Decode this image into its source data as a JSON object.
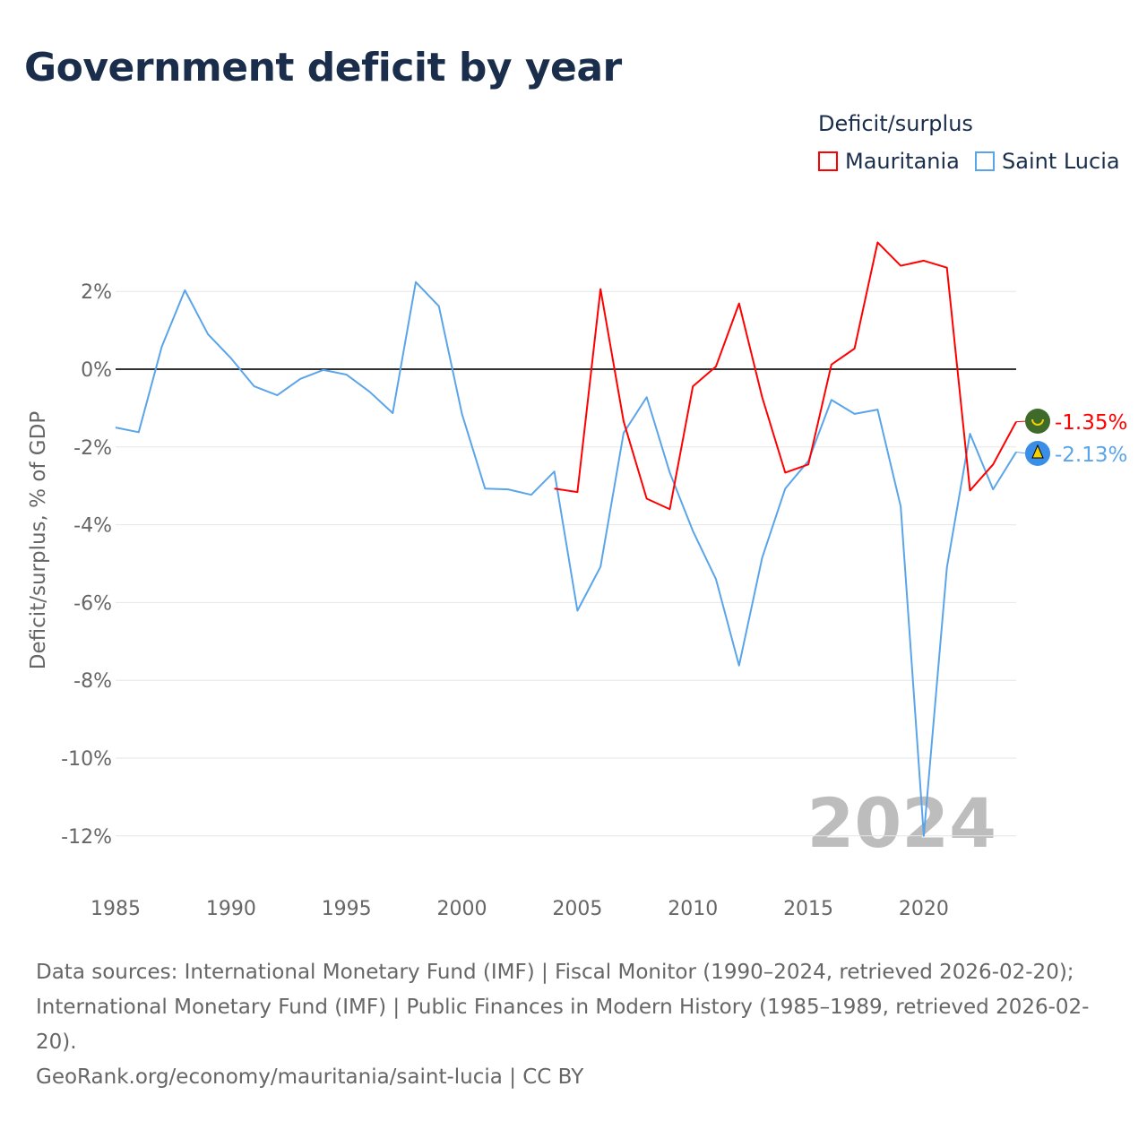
{
  "title": "Government deficit by year",
  "legend": {
    "title": "Deficit/surplus",
    "items": [
      {
        "label": "Mauritania",
        "color": "#ff0000"
      },
      {
        "label": "Saint Lucia",
        "color": "#5aa5ea"
      }
    ]
  },
  "chart_data": {
    "type": "line",
    "title": "Government deficit by year",
    "xlabel": "",
    "ylabel": "Deficit/surplus, % of GDP",
    "xlim": [
      1985,
      2024
    ],
    "ylim": [
      -12,
      2
    ],
    "x_ticks": [
      "1985",
      "1990",
      "1995",
      "2000",
      "2005",
      "2010",
      "2015",
      "2020"
    ],
    "y_ticks": [
      "2%",
      "0%",
      "-2%",
      "-4%",
      "-6%",
      "-8%",
      "-10%",
      "-12%"
    ],
    "y_tick_values": [
      2,
      0,
      -2,
      -4,
      -6,
      -8,
      -10,
      -12
    ],
    "watermark_year": "2024",
    "series": [
      {
        "name": "Mauritania",
        "color": "#ff0000",
        "end_label": "-1.35%",
        "start_year": 2004,
        "values": [
          -3.07,
          -3.16,
          2.06,
          -1.34,
          -3.33,
          -3.6,
          -0.44,
          0.07,
          1.69,
          -0.72,
          -2.66,
          -2.45,
          0.12,
          0.53,
          3.26,
          2.66,
          2.79,
          2.61,
          -3.12,
          -2.45,
          -1.35
        ]
      },
      {
        "name": "Saint Lucia",
        "color": "#5aa5ea",
        "end_label": "-2.13%",
        "start_year": 1985,
        "values": [
          -1.5,
          -1.62,
          0.58,
          2.03,
          0.9,
          0.28,
          -0.44,
          -0.67,
          -0.25,
          -0.02,
          -0.14,
          -0.58,
          -1.13,
          2.24,
          1.62,
          -1.15,
          -3.07,
          -3.09,
          -3.23,
          -2.63,
          -6.21,
          -5.08,
          -1.64,
          -0.72,
          -2.66,
          -4.16,
          -5.4,
          -7.62,
          -4.85,
          -3.07,
          -2.36,
          -0.79,
          -1.15,
          -1.04,
          -3.53,
          -12.0,
          -5.1,
          -1.66,
          -3.09,
          -2.13
        ]
      }
    ]
  },
  "footer": {
    "sources": "Data sources: International Monetary Fund (IMF) | Fiscal Monitor (1990–2024, retrieved 2026-02-20); International Monetary Fund (IMF) | Public Finances in Modern History (1985–1989, retrieved 2026-02-20).",
    "link": "GeoRank.org/economy/mauritania/saint-lucia | CC BY"
  }
}
